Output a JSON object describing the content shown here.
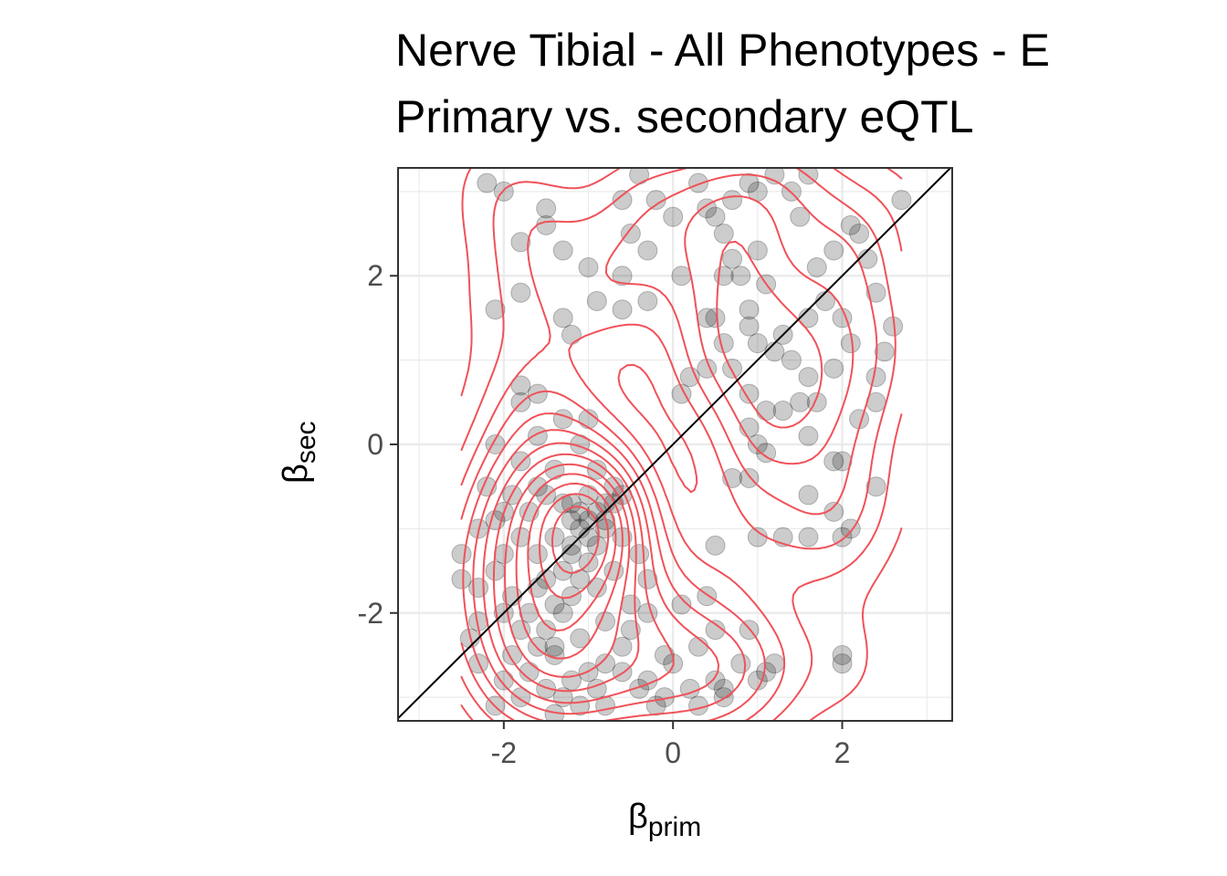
{
  "chart_data": {
    "type": "scatter",
    "title": "Nerve Tibial - All Phenotypes - E",
    "subtitle": "Primary vs. secondary eQTL",
    "xlabel": {
      "symbol": "β",
      "subscript": "prim"
    },
    "ylabel": {
      "symbol": "β",
      "subscript": "sec"
    },
    "xlim": [
      -3.25,
      3.3
    ],
    "ylim": [
      -3.28,
      3.28
    ],
    "x_ticks": [
      -2,
      0,
      2
    ],
    "y_ticks": [
      -2,
      0,
      2
    ],
    "x_tick_labels": [
      "-2",
      "0",
      "2"
    ],
    "y_tick_labels": [
      "-2",
      "0",
      "2"
    ],
    "grid": true,
    "reference_line": "y = x",
    "density_contours": true,
    "colors": {
      "points": "#000000",
      "contours": "#f0525a",
      "reference": "#000000",
      "grid": "#ebebeb",
      "panel_border": "#333333"
    },
    "series": [
      {
        "points": [
          [
            -2.2,
            3.1
          ],
          [
            -2.0,
            3.0
          ],
          [
            -1.5,
            2.8
          ],
          [
            -1.8,
            2.4
          ],
          [
            -1.3,
            2.3
          ],
          [
            -1.5,
            2.6
          ],
          [
            -1.8,
            1.8
          ],
          [
            -2.1,
            1.6
          ],
          [
            -1.3,
            1.5
          ],
          [
            -1.2,
            1.3
          ],
          [
            -1.0,
            2.1
          ],
          [
            -0.9,
            1.7
          ],
          [
            -0.6,
            1.6
          ],
          [
            -0.5,
            2.5
          ],
          [
            -0.3,
            2.3
          ],
          [
            -0.2,
            2.9
          ],
          [
            -0.6,
            2.9
          ],
          [
            -0.4,
            3.2
          ],
          [
            0.3,
            3.1
          ],
          [
            0.0,
            2.7
          ],
          [
            -0.3,
            1.7
          ],
          [
            0.1,
            2.0
          ],
          [
            -0.6,
            2.0
          ],
          [
            0.4,
            2.8
          ],
          [
            0.6,
            2.5
          ],
          [
            0.7,
            2.2
          ],
          [
            0.8,
            2.0
          ],
          [
            0.6,
            2.0
          ],
          [
            1.0,
            2.3
          ],
          [
            1.1,
            1.9
          ],
          [
            0.9,
            1.6
          ],
          [
            0.5,
            1.5
          ],
          [
            0.4,
            1.5
          ],
          [
            0.6,
            1.2
          ],
          [
            0.9,
            1.4
          ],
          [
            1.0,
            1.2
          ],
          [
            1.2,
            1.1
          ],
          [
            1.4,
            1.0
          ],
          [
            1.3,
            1.3
          ],
          [
            1.6,
            1.5
          ],
          [
            1.8,
            1.7
          ],
          [
            2.0,
            1.5
          ],
          [
            2.1,
            1.2
          ],
          [
            1.9,
            0.9
          ],
          [
            1.6,
            0.8
          ],
          [
            1.5,
            0.5
          ],
          [
            1.7,
            0.5
          ],
          [
            1.3,
            0.4
          ],
          [
            1.1,
            0.4
          ],
          [
            0.9,
            0.6
          ],
          [
            0.7,
            0.9
          ],
          [
            0.4,
            0.9
          ],
          [
            0.2,
            0.8
          ],
          [
            0.1,
            0.6
          ],
          [
            0.9,
            0.2
          ],
          [
            1.0,
            0.0
          ],
          [
            1.1,
            -0.1
          ],
          [
            0.7,
            -0.4
          ],
          [
            0.9,
            -0.4
          ],
          [
            1.6,
            0.1
          ],
          [
            2.0,
            -0.2
          ],
          [
            2.2,
            0.3
          ],
          [
            2.4,
            0.5
          ],
          [
            2.4,
            0.8
          ],
          [
            2.5,
            1.1
          ],
          [
            2.6,
            1.4
          ],
          [
            2.4,
            1.8
          ],
          [
            2.3,
            2.2
          ],
          [
            2.2,
            2.5
          ],
          [
            2.1,
            2.6
          ],
          [
            1.9,
            2.3
          ],
          [
            1.7,
            2.1
          ],
          [
            1.5,
            2.7
          ],
          [
            1.4,
            3.0
          ],
          [
            1.6,
            3.2
          ],
          [
            1.0,
            3.0
          ],
          [
            0.9,
            3.1
          ],
          [
            1.2,
            3.2
          ],
          [
            0.7,
            2.9
          ],
          [
            0.5,
            2.7
          ],
          [
            2.7,
            2.9
          ],
          [
            1.9,
            -0.2
          ],
          [
            1.6,
            -0.6
          ],
          [
            1.9,
            -0.8
          ],
          [
            2.1,
            -1.0
          ],
          [
            2.0,
            -1.1
          ],
          [
            1.6,
            -1.1
          ],
          [
            1.3,
            -1.1
          ],
          [
            1.0,
            -1.1
          ],
          [
            0.5,
            -1.2
          ],
          [
            2.4,
            -0.5
          ],
          [
            2.0,
            -2.5
          ],
          [
            2.0,
            -2.6
          ],
          [
            1.1,
            -2.7
          ],
          [
            1.0,
            -2.8
          ],
          [
            0.8,
            -2.6
          ],
          [
            0.6,
            -2.9
          ],
          [
            0.6,
            -3.0
          ],
          [
            0.3,
            -3.1
          ],
          [
            0.2,
            -2.9
          ],
          [
            -0.1,
            -3.0
          ],
          [
            -0.2,
            -3.1
          ],
          [
            -0.4,
            -2.9
          ],
          [
            0.0,
            -2.6
          ],
          [
            -0.1,
            -2.5
          ],
          [
            0.3,
            -2.4
          ],
          [
            0.5,
            -2.2
          ],
          [
            0.4,
            -1.8
          ],
          [
            0.1,
            -1.9
          ],
          [
            -0.3,
            -2.0
          ],
          [
            -0.5,
            -2.2
          ],
          [
            -0.6,
            -2.4
          ],
          [
            -0.8,
            -2.6
          ],
          [
            -1.0,
            -2.7
          ],
          [
            -1.2,
            -2.8
          ],
          [
            -1.4,
            -2.5
          ],
          [
            -1.6,
            -2.4
          ],
          [
            -1.8,
            -2.2
          ],
          [
            -2.0,
            -2.0
          ],
          [
            -2.3,
            -2.1
          ],
          [
            -2.5,
            -1.6
          ],
          [
            -2.5,
            -1.3
          ],
          [
            -2.3,
            -1.0
          ],
          [
            -2.1,
            -0.9
          ],
          [
            -2.0,
            -0.8
          ],
          [
            -1.8,
            -1.1
          ],
          [
            -1.6,
            -1.3
          ],
          [
            -1.5,
            -1.6
          ],
          [
            -1.4,
            -1.9
          ],
          [
            -1.3,
            -1.5
          ],
          [
            -1.2,
            -1.2
          ],
          [
            -1.1,
            -1.0
          ],
          [
            -1.0,
            -0.9
          ],
          [
            -0.9,
            -0.8
          ],
          [
            -0.8,
            -0.7
          ],
          [
            -0.7,
            -0.7
          ],
          [
            -0.6,
            -0.6
          ],
          [
            -0.8,
            -1.0
          ],
          [
            -1.0,
            -1.1
          ],
          [
            -1.2,
            -0.9
          ],
          [
            -1.2,
            -0.7
          ],
          [
            -1.1,
            -0.8
          ],
          [
            -1.3,
            -0.7
          ],
          [
            -1.5,
            -0.6
          ],
          [
            -1.6,
            -0.5
          ],
          [
            -1.8,
            -0.2
          ],
          [
            -2.1,
            0.0
          ],
          [
            -1.8,
            0.5
          ],
          [
            -1.6,
            0.6
          ],
          [
            -1.8,
            0.7
          ],
          [
            -1.3,
            0.3
          ],
          [
            -1.1,
            0.0
          ],
          [
            -0.9,
            -0.3
          ],
          [
            -0.7,
            -0.5
          ],
          [
            -0.6,
            -1.1
          ],
          [
            -0.4,
            -1.3
          ],
          [
            -0.3,
            -1.6
          ],
          [
            -0.5,
            -1.9
          ],
          [
            -0.7,
            -1.5
          ],
          [
            -0.9,
            -1.7
          ],
          [
            -1.1,
            -1.6
          ],
          [
            -1.3,
            -2.0
          ],
          [
            -1.5,
            -2.2
          ],
          [
            -1.7,
            -2.0
          ],
          [
            -1.9,
            -1.8
          ],
          [
            -2.1,
            -1.5
          ],
          [
            -2.3,
            -1.7
          ],
          [
            -1.9,
            -2.5
          ],
          [
            -1.7,
            -2.7
          ],
          [
            -1.5,
            -2.9
          ],
          [
            -1.3,
            -3.0
          ],
          [
            -1.1,
            -3.1
          ],
          [
            -0.8,
            -3.1
          ],
          [
            -0.9,
            -2.9
          ],
          [
            -2.0,
            -2.8
          ],
          [
            -2.1,
            -3.1
          ],
          [
            -1.8,
            -3.0
          ],
          [
            -1.4,
            -3.2
          ],
          [
            -2.3,
            -2.6
          ],
          [
            -2.4,
            -2.3
          ],
          [
            -0.9,
            -1.2
          ],
          [
            -1.0,
            -1.4
          ],
          [
            -1.4,
            -1.1
          ],
          [
            -1.7,
            -0.8
          ],
          [
            -1.9,
            -0.6
          ],
          [
            -2.2,
            -0.5
          ],
          [
            -2.0,
            -1.3
          ],
          [
            -1.6,
            -1.7
          ],
          [
            -1.2,
            -1.3
          ],
          [
            -1.0,
            -0.6
          ],
          [
            -0.8,
            -0.9
          ],
          [
            -1.2,
            -1.8
          ],
          [
            -1.4,
            -2.4
          ],
          [
            -1.1,
            -2.3
          ],
          [
            -0.8,
            -2.1
          ],
          [
            -0.6,
            -2.7
          ],
          [
            -0.3,
            -2.8
          ],
          [
            0.5,
            -2.8
          ],
          [
            0.9,
            -2.2
          ],
          [
            1.2,
            -2.6
          ],
          [
            -1.4,
            -0.3
          ],
          [
            -1.6,
            0.1
          ],
          [
            -1.0,
            0.3
          ]
        ]
      }
    ]
  }
}
